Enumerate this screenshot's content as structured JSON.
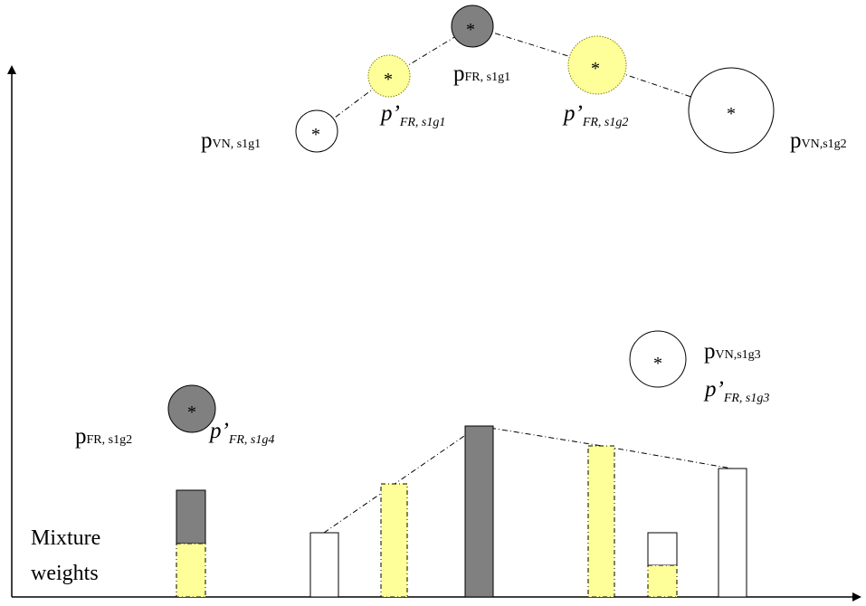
{
  "colors": {
    "gray": "#808080",
    "yellow": "#ffff99",
    "white": "#ffffff",
    "stroke": "#000000"
  },
  "labels": {
    "p_vn_s1g1_main": "p",
    "p_vn_s1g1_sub": "VN, s1g1",
    "pp_fr_s1g1_main": "p’",
    "pp_fr_s1g1_sub": "FR, s1g1",
    "p_fr_s1g1_main": "p",
    "p_fr_s1g1_sub": "FR, s1g1",
    "pp_fr_s1g2_main": "p’",
    "pp_fr_s1g2_sub": "FR, s1g2",
    "p_vn_s1g2_main": "p",
    "p_vn_s1g2_sub": "VN,s1g2",
    "p_vn_s1g3_main": "p",
    "p_vn_s1g3_sub": "VN,s1g3",
    "pp_fr_s1g3_main": "p’",
    "pp_fr_s1g3_sub": "FR, s1g3",
    "p_fr_s1g2_main": "p",
    "p_fr_s1g2_sub": "FR, s1g2",
    "pp_fr_s1g4_main": "p’",
    "pp_fr_s1g4_sub": "FR, s1g4",
    "mixture_line1": "Mixture",
    "mixture_line2": "weights",
    "star": "*"
  }
}
